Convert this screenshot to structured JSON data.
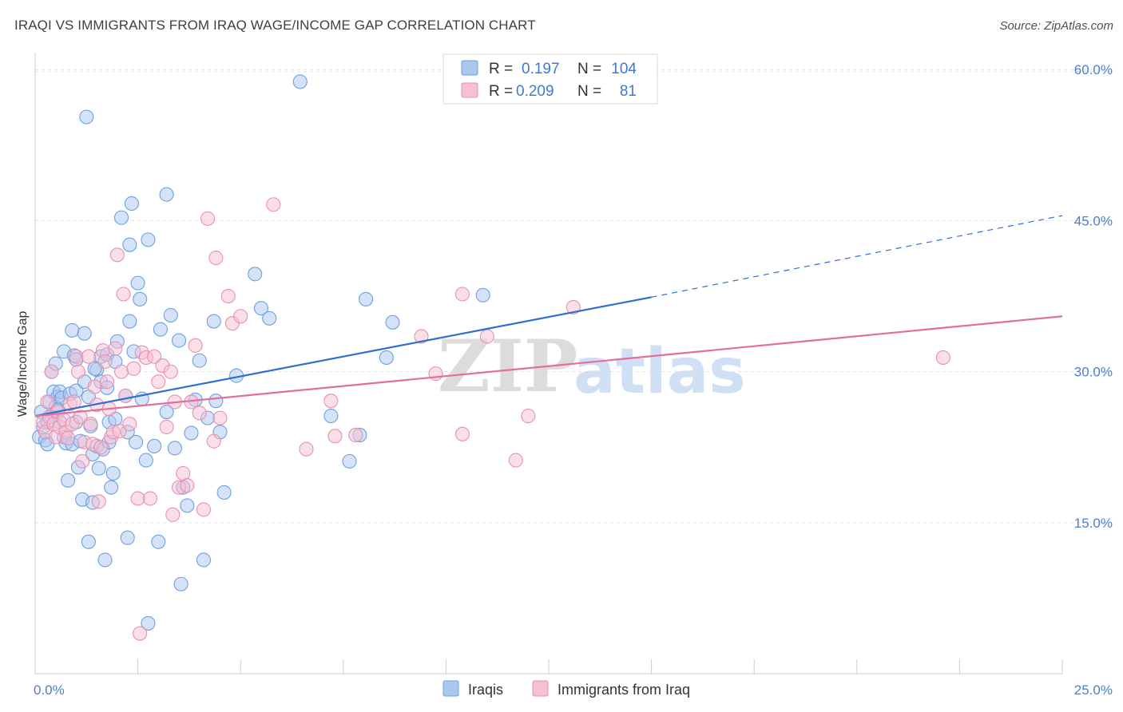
{
  "header": {
    "title": "IRAQI VS IMMIGRANTS FROM IRAQ WAGE/INCOME GAP CORRELATION CHART",
    "source": "Source: ZipAtlas.com"
  },
  "watermark": {
    "zip": "ZIP",
    "atlas": "atlas"
  },
  "legend": {
    "rows": [
      {
        "r_label": "R =",
        "r_value": "0.197",
        "n_label": "N =",
        "n_value": "104",
        "color": "#a9c8f0",
        "stroke": "#6f9fe0"
      },
      {
        "r_label": "R =",
        "r_value": "0.209",
        "n_label": "N =",
        "n_value": "81",
        "color": "#f7c0d2",
        "stroke": "#e890ae"
      }
    ]
  },
  "bottom_legend": [
    {
      "label": "Iraqis",
      "color": "#a9c8f0",
      "stroke": "#6f9fe0"
    },
    {
      "label": "Immigrants from Iraq",
      "color": "#f7c0d2",
      "stroke": "#e890ae"
    }
  ],
  "chart_data": {
    "type": "scatter",
    "xlabel": "",
    "ylabel": "Wage/Income Gap",
    "xlim": [
      0,
      25
    ],
    "ylim": [
      0,
      62
    ],
    "x_tick_labels": [
      "0.0%",
      "25.0%"
    ],
    "y_ticks": [
      15,
      30,
      45,
      60
    ],
    "y_tick_labels": [
      "15.0%",
      "30.0%",
      "45.0%",
      "60.0%"
    ],
    "grid": true,
    "legend_position": "top-center",
    "series": [
      {
        "name": "Iraqis",
        "color": "#6f9fe0",
        "fill": "#a9c8f0",
        "trend": {
          "x0": 0,
          "y0": 25.6,
          "x1": 15,
          "y1": 37.4,
          "dashed_to_x": 25,
          "dashed_to_y": 45.5,
          "color": "#2f6fcf"
        },
        "points": [
          [
            0.1,
            23.5
          ],
          [
            0.15,
            26.0
          ],
          [
            0.2,
            24.5
          ],
          [
            0.25,
            23.2
          ],
          [
            0.3,
            22.8
          ],
          [
            0.35,
            27.0
          ],
          [
            0.4,
            25.5
          ],
          [
            0.4,
            30.0
          ],
          [
            0.45,
            28.0
          ],
          [
            0.5,
            30.8
          ],
          [
            0.5,
            26.5
          ],
          [
            0.55,
            27.5
          ],
          [
            0.6,
            25.0
          ],
          [
            0.6,
            28.0
          ],
          [
            0.65,
            27.4
          ],
          [
            0.7,
            32.0
          ],
          [
            0.7,
            23.5
          ],
          [
            0.75,
            22.9
          ],
          [
            0.8,
            19.2
          ],
          [
            0.85,
            27.8
          ],
          [
            0.9,
            34.1
          ],
          [
            0.9,
            22.8
          ],
          [
            0.95,
            31.6
          ],
          [
            1.0,
            31.2
          ],
          [
            1.0,
            28.1
          ],
          [
            1.05,
            20.5
          ],
          [
            1.1,
            23.1
          ],
          [
            1.15,
            17.3
          ],
          [
            1.2,
            29.0
          ],
          [
            1.2,
            33.8
          ],
          [
            1.25,
            55.3
          ],
          [
            1.3,
            27.5
          ],
          [
            1.3,
            13.1
          ],
          [
            1.35,
            24.6
          ],
          [
            1.4,
            21.8
          ],
          [
            1.4,
            17.0
          ],
          [
            1.5,
            30.2
          ],
          [
            1.5,
            22.6
          ],
          [
            1.55,
            20.4
          ],
          [
            1.6,
            31.5
          ],
          [
            1.6,
            29.0
          ],
          [
            1.65,
            22.3
          ],
          [
            1.7,
            11.3
          ],
          [
            1.75,
            31.7
          ],
          [
            1.8,
            25.0
          ],
          [
            1.8,
            23.0
          ],
          [
            1.85,
            18.5
          ],
          [
            1.9,
            19.9
          ],
          [
            1.95,
            25.3
          ],
          [
            2.0,
            33.0
          ],
          [
            2.1,
            45.3
          ],
          [
            2.2,
            27.6
          ],
          [
            2.25,
            24.0
          ],
          [
            2.25,
            13.5
          ],
          [
            2.3,
            35.0
          ],
          [
            2.35,
            46.7
          ],
          [
            2.4,
            32.0
          ],
          [
            2.5,
            38.8
          ],
          [
            2.55,
            37.2
          ],
          [
            2.6,
            27.3
          ],
          [
            2.7,
            21.2
          ],
          [
            2.75,
            43.1
          ],
          [
            2.75,
            5.0
          ],
          [
            2.9,
            22.6
          ],
          [
            3.0,
            13.1
          ],
          [
            3.05,
            34.2
          ],
          [
            3.2,
            47.6
          ],
          [
            3.3,
            35.6
          ],
          [
            3.4,
            22.4
          ],
          [
            3.5,
            33.1
          ],
          [
            3.55,
            8.9
          ],
          [
            3.6,
            18.5
          ],
          [
            3.7,
            16.7
          ],
          [
            3.8,
            23.9
          ],
          [
            3.9,
            27.2
          ],
          [
            4.0,
            31.1
          ],
          [
            4.1,
            11.3
          ],
          [
            4.2,
            25.4
          ],
          [
            4.35,
            35.0
          ],
          [
            4.4,
            27.1
          ],
          [
            4.5,
            24.0
          ],
          [
            4.6,
            18.0
          ],
          [
            4.9,
            29.6
          ],
          [
            5.35,
            39.7
          ],
          [
            5.5,
            36.3
          ],
          [
            5.7,
            35.3
          ],
          [
            6.45,
            58.8
          ],
          [
            7.2,
            25.6
          ],
          [
            7.65,
            21.1
          ],
          [
            7.9,
            23.7
          ],
          [
            8.05,
            37.2
          ],
          [
            8.55,
            31.4
          ],
          [
            8.7,
            34.9
          ],
          [
            10.9,
            37.6
          ],
          [
            2.3,
            42.6
          ],
          [
            1.45,
            30.3
          ],
          [
            1.95,
            31.0
          ],
          [
            0.3,
            25.0
          ],
          [
            1.0,
            25.0
          ],
          [
            2.45,
            23.0
          ],
          [
            0.55,
            26.2
          ],
          [
            3.2,
            26.0
          ],
          [
            1.75,
            28.4
          ]
        ]
      },
      {
        "name": "Immigrants from Iraq",
        "color": "#e890ae",
        "fill": "#f7c0d2",
        "trend": {
          "x0": 0,
          "y0": 25.6,
          "x1": 25,
          "y1": 35.5,
          "color": "#e0709a"
        },
        "points": [
          [
            0.2,
            25.0
          ],
          [
            0.25,
            24.0
          ],
          [
            0.3,
            27.0
          ],
          [
            0.35,
            25.5
          ],
          [
            0.4,
            30.0
          ],
          [
            0.45,
            24.8
          ],
          [
            0.5,
            23.5
          ],
          [
            0.55,
            26.0
          ],
          [
            0.6,
            24.5
          ],
          [
            0.7,
            25.2
          ],
          [
            0.75,
            24.0
          ],
          [
            0.8,
            23.4
          ],
          [
            0.85,
            26.8
          ],
          [
            0.9,
            24.8
          ],
          [
            0.95,
            27.0
          ],
          [
            1.0,
            31.5
          ],
          [
            1.05,
            30.0
          ],
          [
            1.1,
            25.5
          ],
          [
            1.15,
            21.1
          ],
          [
            1.2,
            23.0
          ],
          [
            1.3,
            31.5
          ],
          [
            1.35,
            24.8
          ],
          [
            1.4,
            22.8
          ],
          [
            1.45,
            28.5
          ],
          [
            1.5,
            26.7
          ],
          [
            1.55,
            17.1
          ],
          [
            1.6,
            22.5
          ],
          [
            1.65,
            32.1
          ],
          [
            1.7,
            31.0
          ],
          [
            1.75,
            29.0
          ],
          [
            1.8,
            26.3
          ],
          [
            1.85,
            23.5
          ],
          [
            1.9,
            24.0
          ],
          [
            1.95,
            32.3
          ],
          [
            2.0,
            41.6
          ],
          [
            2.05,
            24.1
          ],
          [
            2.1,
            30.0
          ],
          [
            2.15,
            37.7
          ],
          [
            2.2,
            27.6
          ],
          [
            2.3,
            24.8
          ],
          [
            2.4,
            30.3
          ],
          [
            2.5,
            17.4
          ],
          [
            2.55,
            4.0
          ],
          [
            2.6,
            31.9
          ],
          [
            2.7,
            31.4
          ],
          [
            2.8,
            17.4
          ],
          [
            2.9,
            31.5
          ],
          [
            3.0,
            29.0
          ],
          [
            3.1,
            30.6
          ],
          [
            3.2,
            24.5
          ],
          [
            3.3,
            30.0
          ],
          [
            3.35,
            15.8
          ],
          [
            3.4,
            27.0
          ],
          [
            3.5,
            18.5
          ],
          [
            3.6,
            19.9
          ],
          [
            3.7,
            18.7
          ],
          [
            3.8,
            27.0
          ],
          [
            3.9,
            32.6
          ],
          [
            4.0,
            25.9
          ],
          [
            4.1,
            16.3
          ],
          [
            4.2,
            45.2
          ],
          [
            4.35,
            23.1
          ],
          [
            4.4,
            41.3
          ],
          [
            4.5,
            25.4
          ],
          [
            4.7,
            37.5
          ],
          [
            4.8,
            34.8
          ],
          [
            5.0,
            35.5
          ],
          [
            5.8,
            46.6
          ],
          [
            6.6,
            22.3
          ],
          [
            7.2,
            27.1
          ],
          [
            7.3,
            23.6
          ],
          [
            7.8,
            23.7
          ],
          [
            9.4,
            33.5
          ],
          [
            9.75,
            29.8
          ],
          [
            10.4,
            37.7
          ],
          [
            10.4,
            23.8
          ],
          [
            11.0,
            33.5
          ],
          [
            11.7,
            21.2
          ],
          [
            12.0,
            25.6
          ],
          [
            13.1,
            36.4
          ],
          [
            22.1,
            31.4
          ]
        ]
      }
    ]
  }
}
